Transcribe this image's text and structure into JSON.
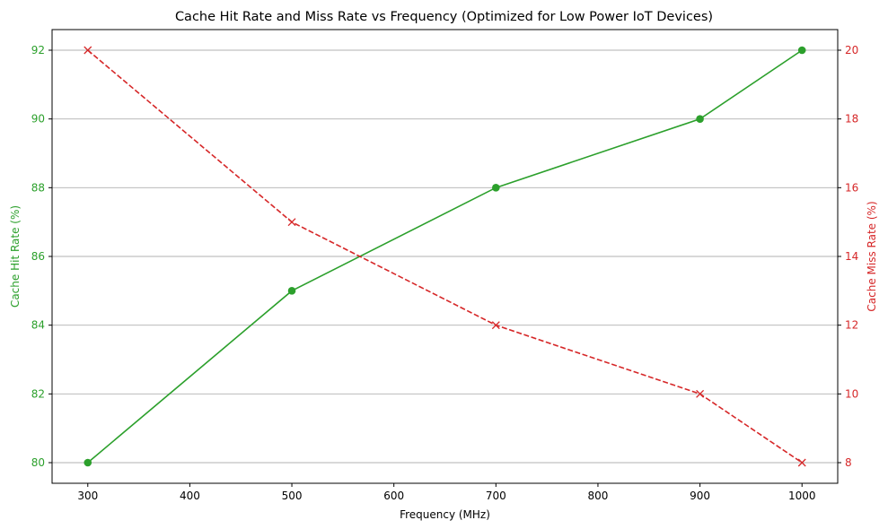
{
  "chart_data": {
    "type": "line",
    "title": "Cache Hit Rate and Miss Rate vs Frequency (Optimized for Low Power IoT Devices)",
    "xlabel": "Frequency (MHz)",
    "ylabel_left": "Cache Hit Rate (%)",
    "ylabel_right": "Cache Miss Rate (%)",
    "x": [
      300,
      500,
      700,
      900,
      1000
    ],
    "x_ticks": [
      "300",
      "400",
      "500",
      "600",
      "700",
      "800",
      "900",
      "1000"
    ],
    "xlim": [
      265,
      1035
    ],
    "y_left_ticks": [
      "80",
      "82",
      "84",
      "86",
      "88",
      "90",
      "92"
    ],
    "ylim_left": [
      79.4,
      92.6
    ],
    "y_right_ticks": [
      "8",
      "10",
      "12",
      "14",
      "16",
      "18",
      "20"
    ],
    "ylim_right": [
      7.4,
      20.6
    ],
    "grid": "horizontal",
    "series": [
      {
        "axis": "left",
        "values": [
          80,
          85,
          88,
          90,
          92
        ],
        "color": "#2ca02c",
        "style": "solid",
        "marker": "circle"
      },
      {
        "axis": "right",
        "values": [
          20,
          15,
          12,
          10,
          8
        ],
        "color": "#d62728",
        "style": "dashed",
        "marker": "x"
      }
    ]
  }
}
